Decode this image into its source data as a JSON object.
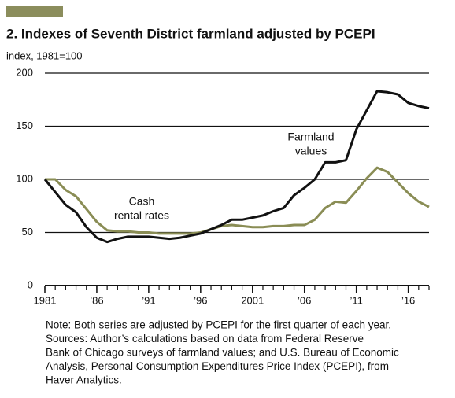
{
  "chart_data": {
    "type": "line",
    "title": "2. Indexes of Seventh District farmland adjusted by PCEPI",
    "y_axis_label": "index, 1981=100",
    "x": [
      1981,
      1982,
      1983,
      1984,
      1985,
      1986,
      1987,
      1988,
      1989,
      1990,
      1991,
      1992,
      1993,
      1994,
      1995,
      1996,
      1997,
      1998,
      1999,
      2000,
      2001,
      2002,
      2003,
      2004,
      2005,
      2006,
      2007,
      2008,
      2009,
      2010,
      2011,
      2012,
      2013,
      2014,
      2015,
      2016,
      2017,
      2018
    ],
    "series": [
      {
        "name": "Farmland values",
        "color": "#111111",
        "values": [
          100,
          88,
          76,
          69,
          55,
          45,
          41,
          44,
          46,
          46,
          46,
          45,
          44,
          45,
          47,
          49,
          53,
          57,
          62,
          62,
          64,
          66,
          70,
          73,
          85,
          92,
          100,
          116,
          116,
          118,
          147,
          165,
          183,
          182,
          180,
          172,
          169,
          167
        ]
      },
      {
        "name": "Cash rental rates",
        "color": "#8a8d55",
        "values": [
          100,
          100,
          90,
          84,
          72,
          60,
          52,
          51,
          51,
          50,
          50,
          49,
          49,
          49,
          49,
          50,
          53,
          56,
          57,
          56,
          55,
          55,
          56,
          56,
          57,
          57,
          62,
          73,
          79,
          78,
          89,
          101,
          111,
          107,
          97,
          87,
          79,
          74
        ]
      }
    ],
    "annotations": [
      {
        "lines": [
          "Farmland",
          "values"
        ],
        "series": 0
      },
      {
        "lines": [
          "Cash",
          "rental rates"
        ],
        "series": 1
      }
    ],
    "xlim": [
      1981,
      2018
    ],
    "xticks": [
      {
        "value": 1981,
        "label": "1981"
      },
      {
        "value": 1986,
        "label": "’86"
      },
      {
        "value": 1991,
        "label": "’91"
      },
      {
        "value": 1996,
        "label": "’96"
      },
      {
        "value": 2001,
        "label": "2001"
      },
      {
        "value": 2006,
        "label": "’06"
      },
      {
        "value": 2011,
        "label": "’11"
      },
      {
        "value": 2016,
        "label": "’16"
      }
    ],
    "ylim": [
      0,
      200
    ],
    "yticks": [
      0,
      50,
      100,
      150,
      200
    ],
    "grid": true,
    "accent_color": "#8b8d5c",
    "note": [
      "Note: Both series are adjusted by PCEPI for the first quarter of each year.",
      "Sources: Author’s calculations based on data from Federal Reserve",
      "Bank of Chicago surveys of farmland values; and U.S. Bureau of Economic",
      "Analysis, Personal Consumption Expenditures Price Index (PCEPI), from",
      "Haver Analytics."
    ]
  }
}
